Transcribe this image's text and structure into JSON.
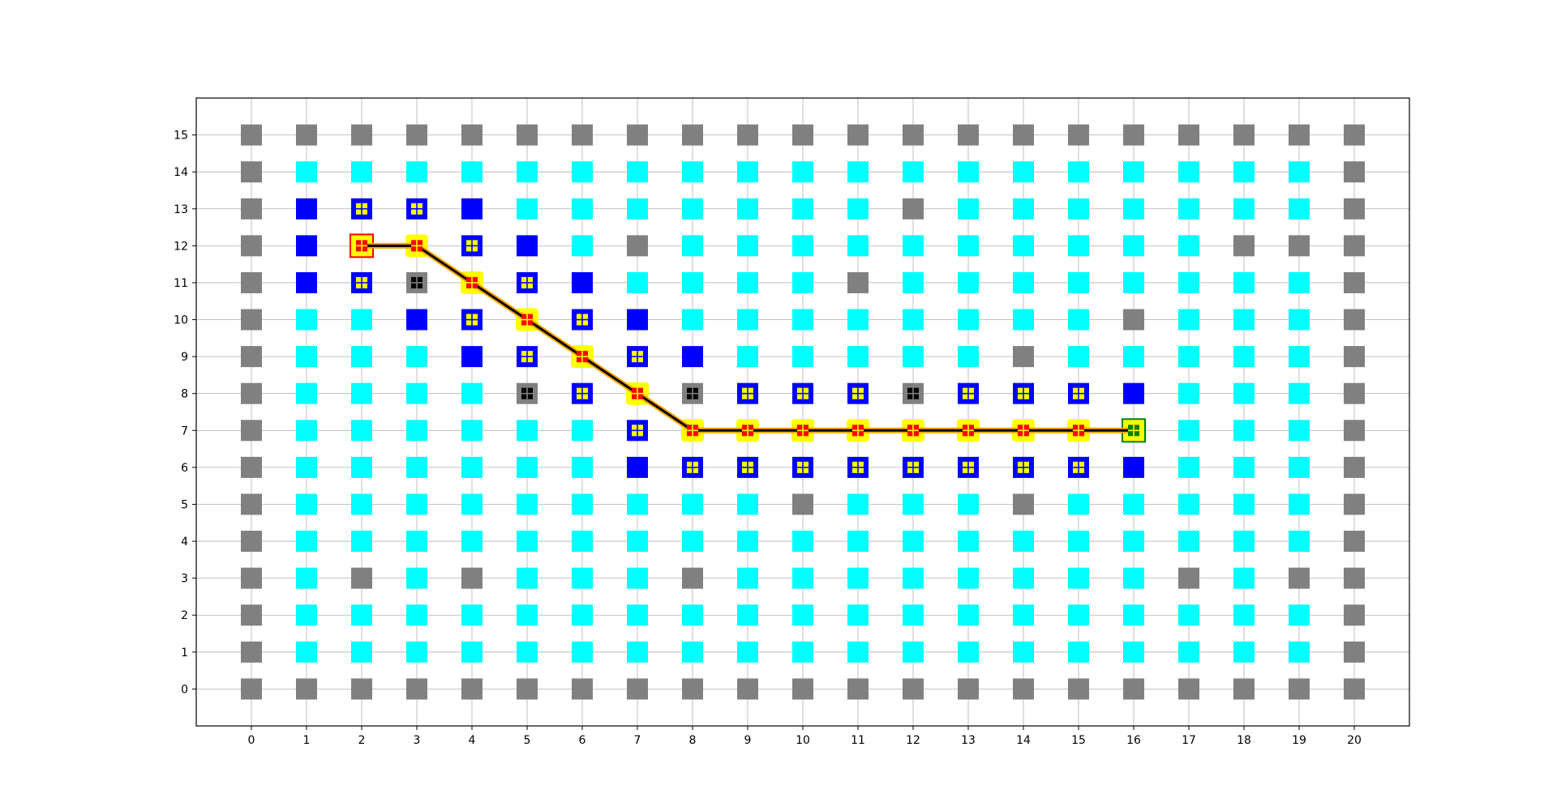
{
  "chart_data": {
    "type": "scatter",
    "title": "",
    "xlabel": "",
    "ylabel": "",
    "xlim": [
      -1,
      21
    ],
    "ylim": [
      -1,
      16
    ],
    "grid": true,
    "x_ticks": [
      0,
      1,
      2,
      3,
      4,
      5,
      6,
      7,
      8,
      9,
      10,
      11,
      12,
      13,
      14,
      15,
      16,
      17,
      18,
      19,
      20
    ],
    "y_ticks": [
      0,
      1,
      2,
      3,
      4,
      5,
      6,
      7,
      8,
      9,
      10,
      11,
      12,
      13,
      14,
      15
    ],
    "x_tick_labels": [
      "0",
      "1",
      "2",
      "3",
      "4",
      "5",
      "6",
      "7",
      "8",
      "9",
      "10",
      "11",
      "12",
      "13",
      "14",
      "15",
      "16",
      "17",
      "18",
      "19",
      "20"
    ],
    "y_tick_labels": [
      "0",
      "1",
      "2",
      "3",
      "4",
      "5",
      "6",
      "7",
      "8",
      "9",
      "10",
      "11",
      "12",
      "13",
      "14",
      "15"
    ],
    "colors": {
      "wall": "#808080",
      "free": "#00ffff",
      "explored": "#0000ff",
      "frontier_marker": "#ffff00",
      "path_marker": "#ff0000",
      "path_halo": "#ffff00",
      "blocked_marker": "#000000",
      "start_border": "#ff0000",
      "goal_fill": "#ffff00",
      "goal_border": "#008000",
      "goal_marker": "#008000",
      "path_line": "#000000",
      "path_line_outline": "#ffa500"
    },
    "grid_rows": [
      "WWWWWWWWWWWWWWWWWWWWW",
      "WFFFFFFFFFFFFFFFFFFFW",
      "WFFFFFFFFFFFFFFFFFFFW",
      "WFWFWFFFWFFFFFFFFWFWW",
      "WFFFFFFFFFFFFFFFFFFFW",
      "WFFFFFFFFFWFFFWFFFFFW",
      "WFFFFFFEEEEEEEEEEFFFW",
      "WFFFFFFEFFFFFFFFFFFFW",
      "WFFFFWEFWEEEWEEEEFFFW",
      "WFFFEEEEEFFFFFWFFFFFW",
      "WFFEEEEEFFFFFFFFWFFFW",
      "WEEWFEEFFFFWFFFFFFFFW",
      "WEEFEEFWFFFFFFFFFFWWW",
      "WEEEEFFFFFFFWFFFFFFFW",
      "WFFFFFFFFFFFFFFFFFFFW",
      "WWWWWWWWWWWWWWWWWWWWW"
    ],
    "frontier_markers": [
      [
        2,
        13
      ],
      [
        3,
        13
      ],
      [
        4,
        12
      ],
      [
        2,
        11
      ],
      [
        5,
        11
      ],
      [
        4,
        10
      ],
      [
        6,
        10
      ],
      [
        5,
        9
      ],
      [
        7,
        9
      ],
      [
        6,
        8
      ],
      [
        9,
        8
      ],
      [
        10,
        8
      ],
      [
        11,
        8
      ],
      [
        13,
        8
      ],
      [
        14,
        8
      ],
      [
        15,
        8
      ],
      [
        7,
        7
      ],
      [
        8,
        6
      ],
      [
        9,
        6
      ],
      [
        10,
        6
      ],
      [
        11,
        6
      ],
      [
        12,
        6
      ],
      [
        13,
        6
      ],
      [
        14,
        6
      ],
      [
        15,
        6
      ]
    ],
    "blocked_markers": [
      [
        3,
        11
      ],
      [
        5,
        8
      ],
      [
        8,
        8
      ],
      [
        12,
        8
      ]
    ],
    "path": [
      [
        2,
        12
      ],
      [
        3,
        12
      ],
      [
        4,
        11
      ],
      [
        5,
        10
      ],
      [
        6,
        9
      ],
      [
        7,
        8
      ],
      [
        8,
        7
      ],
      [
        9,
        7
      ],
      [
        10,
        7
      ],
      [
        11,
        7
      ],
      [
        12,
        7
      ],
      [
        13,
        7
      ],
      [
        14,
        7
      ],
      [
        15,
        7
      ],
      [
        16,
        7
      ]
    ],
    "start": [
      2,
      12
    ],
    "goal": [
      16,
      7
    ]
  }
}
